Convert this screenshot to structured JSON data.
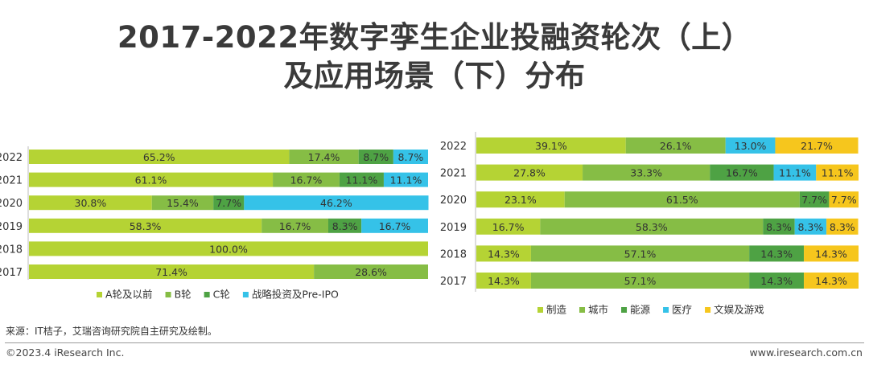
{
  "title_line1": "2017-2022年数字孪生企业投融资轮次（上）",
  "title_line2": "及应用场景（下）分布",
  "source": "来源：IT桔子，艾瑞咨询研究院自主研究及绘制。",
  "copyright": "©2023.4 iResearch Inc.",
  "website": "www.iresearch.com.cn",
  "chart_data": [
    {
      "type": "bar",
      "orientation": "horizontal",
      "stacked": "percent",
      "categories": [
        "2022",
        "2021",
        "2020",
        "2019",
        "2018",
        "2017"
      ],
      "series": [
        {
          "name": "A轮及以前",
          "color": "#b5d334",
          "values": [
            65.2,
            61.1,
            30.8,
            58.3,
            100.0,
            71.4
          ],
          "labels": [
            "65.2%",
            "61.1%",
            "30.8%",
            "58.3%",
            "100.0%",
            "71.4%"
          ]
        },
        {
          "name": "B轮",
          "color": "#86bd45",
          "values": [
            17.4,
            16.7,
            15.4,
            16.7,
            0,
            28.6
          ],
          "labels": [
            "17.4%",
            "16.7%",
            "15.4%",
            "16.7%",
            "",
            "28.6%"
          ]
        },
        {
          "name": "C轮",
          "color": "#4ea244",
          "values": [
            8.7,
            11.1,
            7.7,
            8.3,
            0,
            0
          ],
          "labels": [
            "8.7%",
            "11.1%",
            "7.7%",
            "8.3%",
            "",
            ""
          ]
        },
        {
          "name": "战略投资及Pre-IPO",
          "color": "#35c2e8",
          "values": [
            8.7,
            11.1,
            46.2,
            16.7,
            0,
            0
          ],
          "labels": [
            "8.7%",
            "11.1%",
            "46.2%",
            "16.7%",
            "",
            ""
          ]
        }
      ],
      "xlim": [
        0,
        100
      ],
      "legend": "bottom"
    },
    {
      "type": "bar",
      "orientation": "horizontal",
      "stacked": "percent",
      "categories": [
        "2022",
        "2021",
        "2020",
        "2019",
        "2018",
        "2017"
      ],
      "series": [
        {
          "name": "制造",
          "color": "#b5d334",
          "values": [
            39.1,
            27.8,
            23.1,
            16.7,
            14.3,
            14.3
          ],
          "labels": [
            "39.1%",
            "27.8%",
            "23.1%",
            "16.7%",
            "14.3%",
            "14.3%"
          ]
        },
        {
          "name": "城市",
          "color": "#86bd45",
          "values": [
            26.1,
            33.3,
            61.5,
            58.3,
            57.1,
            57.1
          ],
          "labels": [
            "26.1%",
            "33.3%",
            "61.5%",
            "58.3%",
            "57.1%",
            "57.1%"
          ]
        },
        {
          "name": "能源",
          "color": "#4ea244",
          "values": [
            0,
            16.7,
            7.7,
            8.3,
            14.3,
            14.3
          ],
          "labels": [
            "",
            "16.7%",
            "7.7%",
            "8.3%",
            "14.3%",
            "14.3%"
          ]
        },
        {
          "name": "医疗",
          "color": "#35c2e8",
          "values": [
            13.0,
            11.1,
            0,
            8.3,
            0,
            0
          ],
          "labels": [
            "13.0%",
            "11.1%",
            "",
            "8.3%",
            "",
            ""
          ]
        },
        {
          "name": "文娱及游戏",
          "color": "#f6c61d",
          "values": [
            21.7,
            11.1,
            7.7,
            8.3,
            14.3,
            14.3
          ],
          "labels": [
            "21.7%",
            "11.1%",
            "7.7%",
            "8.3%",
            "14.3%",
            "14.3%"
          ]
        }
      ],
      "xlim": [
        0,
        100
      ],
      "legend": "bottom"
    }
  ]
}
